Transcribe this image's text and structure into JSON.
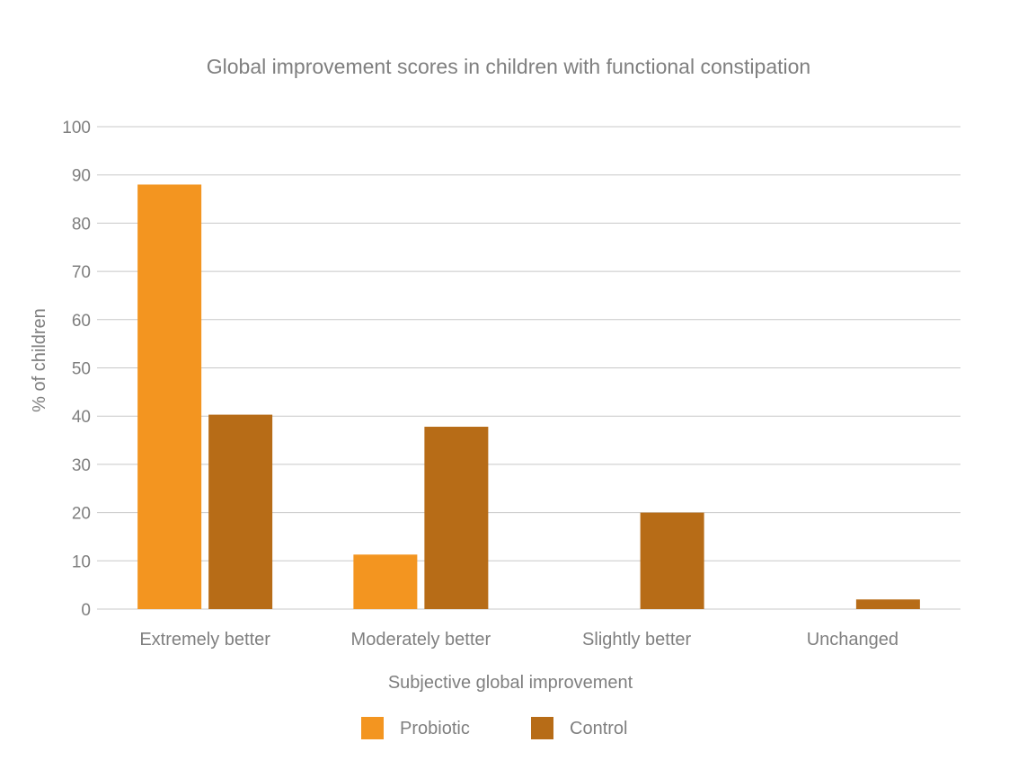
{
  "chart_data": {
    "type": "bar",
    "title": "Global improvement scores in children with functional constipation",
    "xlabel": "Subjective global improvement",
    "ylabel": "% of children",
    "categories": [
      "Extremely better",
      "Moderately better",
      "Slightly better",
      "Unchanged"
    ],
    "series": [
      {
        "name": "Probiotic",
        "color": "#f39520",
        "values": [
          88,
          11.3,
          0,
          0
        ]
      },
      {
        "name": "Control",
        "color": "#b76c17",
        "values": [
          40.3,
          37.8,
          20,
          2
        ]
      }
    ],
    "ylim": [
      0,
      100
    ],
    "yticks": [
      0,
      10,
      20,
      30,
      40,
      50,
      60,
      70,
      80,
      90,
      100
    ],
    "grid": true,
    "legend_position": "bottom"
  }
}
